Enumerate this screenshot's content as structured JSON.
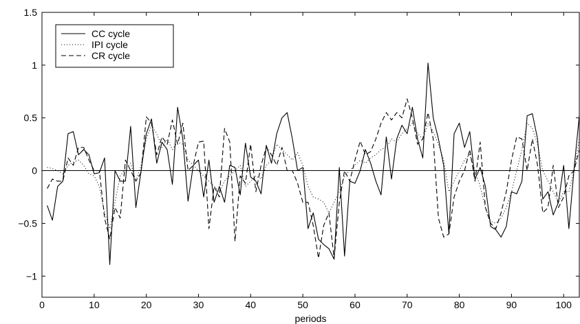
{
  "chart_data": {
    "type": "line",
    "title": "",
    "xlabel": "periods",
    "ylabel": "",
    "xlim": [
      0,
      103
    ],
    "ylim": [
      -1.2,
      1.5
    ],
    "grid": false,
    "legend_placement": "top-left",
    "zero_line": 0,
    "x_ticks": [
      0,
      10,
      20,
      30,
      40,
      50,
      60,
      70,
      80,
      90,
      100
    ],
    "x_tick_labels": [
      "0",
      "10",
      "20",
      "30",
      "40",
      "50",
      "60",
      "70",
      "80",
      "90",
      "100"
    ],
    "y_ticks": [
      -1,
      -0.5,
      0,
      0.5,
      1,
      1.5
    ],
    "y_tick_labels": [
      "−1",
      "−0.5",
      "0",
      "0.5",
      "1",
      "1.5"
    ],
    "x": [
      1,
      2,
      3,
      4,
      5,
      6,
      7,
      8,
      9,
      10,
      11,
      12,
      13,
      14,
      15,
      16,
      17,
      18,
      19,
      20,
      21,
      22,
      23,
      24,
      25,
      26,
      27,
      28,
      29,
      30,
      31,
      32,
      33,
      34,
      35,
      36,
      37,
      38,
      39,
      40,
      41,
      42,
      43,
      44,
      45,
      46,
      47,
      48,
      49,
      50,
      51,
      52,
      53,
      54,
      55,
      56,
      57,
      58,
      59,
      60,
      61,
      62,
      63,
      64,
      65,
      66,
      67,
      68,
      69,
      70,
      71,
      72,
      73,
      74,
      75,
      76,
      77,
      78,
      79,
      80,
      81,
      82,
      83,
      84,
      85,
      86,
      87,
      88,
      89,
      90,
      91,
      92,
      93,
      94,
      95,
      96,
      97,
      98,
      99,
      100,
      101,
      102,
      103
    ],
    "series": [
      {
        "name": "CC cycle",
        "style": "solid",
        "color": "#000000",
        "values": [
          -0.33,
          -0.47,
          -0.15,
          -0.1,
          0.35,
          0.37,
          0.15,
          0.2,
          0.15,
          -0.03,
          -0.02,
          0.12,
          -0.89,
          0.0,
          -0.1,
          -0.1,
          0.42,
          -0.35,
          0.0,
          0.35,
          0.49,
          0.07,
          0.27,
          0.2,
          -0.13,
          0.6,
          0.3,
          -0.29,
          0.05,
          0.1,
          -0.25,
          0.1,
          -0.3,
          -0.15,
          -0.3,
          0.05,
          0.03,
          -0.23,
          0.26,
          -0.06,
          -0.1,
          -0.22,
          0.24,
          0.07,
          0.35,
          0.5,
          0.55,
          0.3,
          0.0,
          0.03,
          -0.55,
          -0.4,
          -0.65,
          -0.7,
          -0.74,
          -0.84,
          0.03,
          -0.81,
          -0.1,
          -0.12,
          0.0,
          0.2,
          0.07,
          -0.1,
          -0.23,
          0.32,
          -0.08,
          0.3,
          0.43,
          0.35,
          0.6,
          0.3,
          0.12,
          1.02,
          0.5,
          0.3,
          0.05,
          -0.6,
          0.35,
          0.45,
          0.22,
          0.37,
          -0.08,
          0.03,
          -0.15,
          -0.53,
          -0.56,
          -0.63,
          -0.53,
          -0.2,
          -0.22,
          -0.1,
          0.52,
          0.54,
          0.3,
          -0.27,
          -0.2,
          -0.42,
          -0.3,
          0.05,
          -0.55,
          0.02,
          0.52
        ],
        "note": ""
      },
      {
        "name": "IPI cycle",
        "style": "dotted",
        "color": "#000000",
        "values": [
          0.03,
          0.02,
          0.0,
          -0.03,
          0.05,
          0.08,
          0.1,
          0.05,
          -0.03,
          -0.05,
          -0.15,
          -0.4,
          -0.55,
          -0.3,
          -0.05,
          0.02,
          0.07,
          -0.1,
          0.05,
          0.3,
          0.43,
          0.35,
          0.22,
          0.3,
          0.2,
          0.27,
          0.25,
          0.1,
          0.05,
          0.0,
          -0.05,
          -0.1,
          -0.15,
          -0.2,
          -0.1,
          -0.05,
          0.0,
          0.05,
          -0.15,
          -0.1,
          -0.05,
          -0.08,
          0.05,
          0.1,
          0.25,
          0.2,
          0.15,
          0.1,
          0.17,
          0.05,
          -0.15,
          -0.25,
          -0.27,
          -0.3,
          -0.4,
          -0.3,
          -0.2,
          -0.05,
          0.0,
          0.05,
          0.1,
          0.07,
          0.12,
          0.15,
          0.2,
          0.22,
          0.3,
          0.27,
          0.35,
          0.4,
          0.45,
          0.35,
          0.3,
          0.45,
          0.37,
          0.25,
          0.1,
          -0.2,
          -0.1,
          0.0,
          0.1,
          0.15,
          0.0,
          -0.15,
          -0.35,
          -0.48,
          -0.5,
          -0.45,
          -0.35,
          -0.2,
          0.0,
          0.2,
          0.45,
          0.4,
          0.25,
          0.0,
          -0.1,
          -0.2,
          -0.3,
          -0.2,
          -0.2,
          0.0,
          0.3
        ],
        "note": ""
      },
      {
        "name": "CR cycle",
        "style": "dashed",
        "color": "#000000",
        "values": [
          -0.17,
          -0.08,
          -0.1,
          -0.1,
          0.12,
          0.05,
          0.22,
          0.22,
          0.1,
          0.0,
          0.0,
          -0.45,
          -0.65,
          -0.35,
          -0.45,
          0.1,
          0.0,
          -0.1,
          -0.02,
          0.51,
          0.45,
          0.15,
          0.32,
          0.25,
          0.48,
          0.25,
          0.45,
          0.0,
          0.05,
          0.27,
          0.28,
          -0.55,
          -0.15,
          -0.25,
          0.4,
          0.27,
          -0.67,
          -0.05,
          -0.12,
          0.25,
          -0.2,
          0.05,
          0.22,
          0.15,
          0.05,
          0.22,
          0.0,
          0.0,
          -0.12,
          -0.3,
          -0.3,
          -0.52,
          -0.83,
          -0.52,
          -0.4,
          -0.83,
          -0.3,
          0.0,
          -0.1,
          0.1,
          0.28,
          0.15,
          0.18,
          0.3,
          0.45,
          0.55,
          0.48,
          0.55,
          0.5,
          0.68,
          0.5,
          0.25,
          0.3,
          0.55,
          0.3,
          -0.45,
          -0.63,
          -0.6,
          -0.25,
          -0.1,
          0.0,
          0.2,
          -0.1,
          0.27,
          -0.35,
          -0.5,
          -0.55,
          -0.4,
          -0.2,
          0.1,
          0.32,
          0.3,
          0.0,
          0.3,
          0.05,
          -0.4,
          -0.35,
          0.05,
          -0.35,
          -0.25,
          -0.05,
          0.0,
          0.2
        ],
        "note": ""
      }
    ]
  }
}
